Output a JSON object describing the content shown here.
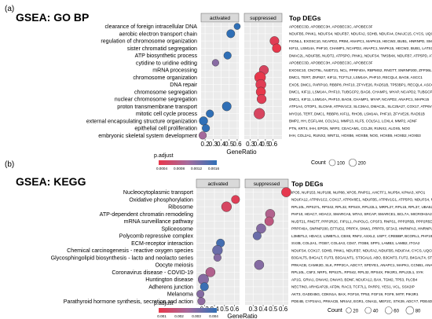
{
  "colors": {
    "low": "#e8374b",
    "mid": "#a56a9c",
    "high": "#2f6fb6",
    "panel_bg": "#ebebeb",
    "strip_bg": "#d9d9d9",
    "grid": "#ffffff",
    "dot_stroke": "#333333"
  },
  "chart_data": [
    {
      "type": "scatter",
      "panel_label": "(a)",
      "title": "GSEA: GO BP",
      "facets": [
        "activated",
        "suppressed"
      ],
      "xlabel": "GeneRatio",
      "facet_xlims": [
        [
          0.15,
          0.62
        ],
        [
          0.22,
          0.72
        ]
      ],
      "xticks": [
        0.2,
        0.3,
        0.4,
        0.5,
        0.6
      ],
      "xtick_labels": [
        "0.2",
        "0.3",
        "0.4",
        "0.5",
        "0.6"
      ],
      "terms": [
        "clearance of foreign intracellular DNA",
        "aerobic electron transport chain",
        "regulation of chromosome organization",
        "sister chromatid segregation",
        "ATP biosynthetic process",
        "cytidine to uridine editing",
        "mRNA processing",
        "chromosome organization",
        "DNA repair",
        "chromosome segregation",
        "nuclear chromosome segregation",
        "proton transmembrane transport",
        "mitotic cell cycle process",
        "external encapsulating structure organization",
        "epithelial cell proliferation",
        "embryonic skeletal system development"
      ],
      "activated": [
        {
          "term_index": 0,
          "x": 0.6,
          "count": 30,
          "padj": 0.0045
        },
        {
          "term_index": 1,
          "x": 0.52,
          "count": 80,
          "padj": 0.0055
        },
        {
          "term_index": 4,
          "x": 0.48,
          "count": 60,
          "padj": 0.0032
        },
        {
          "term_index": 5,
          "x": 0.33,
          "count": 40,
          "padj": 0.0012
        },
        {
          "term_index": 11,
          "x": 0.47,
          "count": 110,
          "padj": 0.0058
        },
        {
          "term_index": 12,
          "x": 0.26,
          "count": 60,
          "padj": 0.0022
        },
        {
          "term_index": 13,
          "x": 0.18,
          "count": 90,
          "padj": 0.0018
        },
        {
          "term_index": 14,
          "x": 0.21,
          "count": 60,
          "padj": 0.0056
        },
        {
          "term_index": 15,
          "x": 0.17,
          "count": 60,
          "padj": 0.001
        }
      ],
      "suppressed": [
        {
          "term_index": 2,
          "x": 0.62,
          "count": 110,
          "padj": 0.0003
        },
        {
          "term_index": 3,
          "x": 0.65,
          "count": 100,
          "padj": 0.0002
        },
        {
          "term_index": 6,
          "x": 0.48,
          "count": 120,
          "padj": 0.0004
        },
        {
          "term_index": 7,
          "x": 0.43,
          "count": 200,
          "padj": 0.0002
        },
        {
          "term_index": 8,
          "x": 0.44,
          "count": 160,
          "padj": 0.0003
        },
        {
          "term_index": 9,
          "x": 0.44,
          "count": 130,
          "padj": 0.0002
        },
        {
          "term_index": 10,
          "x": 0.45,
          "count": 120,
          "padj": 0.0003
        },
        {
          "term_index": 12,
          "x": 0.42,
          "count": 190,
          "padj": 0.0004
        }
      ],
      "color_legend": {
        "title": "p.adjust",
        "ticks": [
          "0.0004",
          "0.0008",
          "0.0012",
          "0.0016"
        ],
        "range": [
          0.0002,
          0.0018
        ]
      },
      "size_legend": {
        "title": "Count",
        "values": [
          100,
          200
        ],
        "labels": [
          "100",
          "200"
        ]
      },
      "degs_title": "Top DEGs",
      "degs": [
        "APOBEC3D, APOBEC3H, APOBEC3C, APOBEC3F",
        "NDUFB5, PINK1, NDUFS4, NDUFB7, NDUFA2, SDHB, NDUFA4, DNAJC15, CYCS, UQCR11",
        "FIGNL1, EXOSC10, NCAPD2, PRIM, ANAPC1, MAPK15, HECW2, BUB1, HNRNPD, SMARCA5",
        "KIF11, LSM14A, PHF10, CHAMP1, NCAPD2, ANAPC1, MAPK15, HECW2, BUB1, LATS1",
        "DMAC2L, NDUFB5, NUDT2, ATP5PO, PINK1, NDUFS4, TMSB4X, NDUFB7, ATP5PD, ATP5F1C",
        "APOBEC3D, APOBEC3H, APOBEC3C, APOBEC3F",
        "EXOSC10, CNOT6L, NUDT21, NCL, PPRF40A, RBPMS2, RNGTT, SNRNP200, ZFP36L1, EFTUD2",
        "DMC1, TERT, ZNF827, KIF11, TCF7L2, LSM14A, PHF10, RECQL4, BAG6, ASCC1",
        "EXO5, DMC1, PARPI10, RBBP8, PHF10, ZFYVE26, RAD51B, TP53BP1, RECQL4, ASCC1",
        "DMC1, KIF11, LSM14A, PHF10, TUBGCP2, BAG6, CHAMP1, MYAP, NCAPD2, TUBGCP4",
        "DMC1, KIF11, LSM14A, PHF10, BAG6, CHAMP1, MYAP, NCAPD2, ANAPC1, MAPK15",
        "ATP1A4, OTOP1, SLC9A9, ATP6V1C2, SLC36A1, DMAC2L, SLC25A27, COX17, ATP6V0E1, NDUFB5",
        "MYO16, TERT, DMC1, RBBP8, KIF11, RHOB, LSM14A, PHF10, ZFYVE26, RAD51B",
        "BMP2, HH, EGFLAM, COL3A1, MMP13, KLF5, COL5A1, LOXL4, MMP2, ADNF",
        "PTN, KRT4, IHH, EPGN, NRP2, CEACAM1, CCL28, RUNX2, ALOX5, NOG",
        "IHH, COL2A1, RUNX2, WNT11, HOXB6, HOXB8, NOG, HOXB5, HOXB2, HOXB3"
      ]
    },
    {
      "type": "scatter",
      "panel_label": "(b)",
      "title": "GSEA: KEGG",
      "facets": [
        "activated",
        "suppressed"
      ],
      "xlabel": "GeneRatio",
      "facet_xlims": [
        [
          0.22,
          0.65
        ],
        [
          0.22,
          0.65
        ]
      ],
      "xticks": [
        0.3,
        0.4,
        0.5,
        0.6
      ],
      "xtick_labels": [
        "0.3",
        "0.4",
        "0.5",
        "0.6"
      ],
      "terms": [
        "Nucleocytoplasmic transport",
        "Oxidative phosphorylation",
        "Ribosome",
        "ATP-dependent chromatin remodeling",
        "mRNA surveillance pathway",
        "Spliceosome",
        "Polycomb repressive complex",
        "ECM-receptor interaction",
        "Chemical carcinogenesis - reactive oxygen species",
        "Glycosphingolipid biosynthesis - lacto and neolacto series",
        "Oocyte meiosis",
        "Coronavirus disease - COVID-19",
        "Huntington disease",
        "Adherens junction",
        "Melanoma",
        "Parathyroid hormone synthesis, secretion and action"
      ],
      "activated": [
        {
          "term_index": 1,
          "x": 0.61,
          "count": 40,
          "padj": 0.0005
        },
        {
          "term_index": 2,
          "x": 0.52,
          "count": 70,
          "padj": 0.0008
        },
        {
          "term_index": 7,
          "x": 0.46,
          "count": 40,
          "padj": 0.0042
        },
        {
          "term_index": 8,
          "x": 0.43,
          "count": 70,
          "padj": 0.0035
        },
        {
          "term_index": 9,
          "x": 0.43,
          "count": 30,
          "padj": 0.003
        },
        {
          "term_index": 11,
          "x": 0.36,
          "count": 60,
          "padj": 0.002
        },
        {
          "term_index": 12,
          "x": 0.29,
          "count": 80,
          "padj": 0.003
        },
        {
          "term_index": 13,
          "x": 0.3,
          "count": 40,
          "padj": 0.0044
        },
        {
          "term_index": 14,
          "x": 0.26,
          "count": 30,
          "padj": 0.003
        },
        {
          "term_index": 15,
          "x": 0.27,
          "count": 30,
          "padj": 0.0028
        }
      ],
      "suppressed": [
        {
          "term_index": 0,
          "x": 0.63,
          "count": 60,
          "padj": 0.0003
        },
        {
          "term_index": 3,
          "x": 0.47,
          "count": 60,
          "padj": 0.002
        },
        {
          "term_index": 4,
          "x": 0.46,
          "count": 50,
          "padj": 0.0016
        },
        {
          "term_index": 5,
          "x": 0.38,
          "count": 60,
          "padj": 0.003
        },
        {
          "term_index": 6,
          "x": 0.34,
          "count": 40,
          "padj": 0.0035
        },
        {
          "term_index": 10,
          "x": 0.36,
          "count": 60,
          "padj": 0.003
        }
      ],
      "color_legend": {
        "title": "p.adjust",
        "ticks": [
          "0.001",
          "0.002",
          "0.003",
          "0.004"
        ],
        "range": [
          0.0002,
          0.0046
        ]
      },
      "size_legend": {
        "title": "Count",
        "values": [
          20,
          40,
          60,
          80
        ],
        "labels": [
          "20",
          "40",
          "60",
          "80"
        ]
      },
      "degs_title": "Top DEGs",
      "degs": [
        "IPO5, NUP153, NUP188, NUP88, XPO5, RNPS1, AHCTF1, NUP54, KPNA3, XPO1",
        "NDUFA12, ATP6V1C2, COX17, ATP6V0E1, NDUFB5, ATP6V1G1, ATP5PO, NDUFS4, NDUFB7",
        "RPL10L, RPS27L, RPS42, RPL32, RPS4X, RPL22L1, MRPL27, RPL15, RPL37, UBA52",
        "PHF10, HDAC7, HDAC2, SMARCA5, MTA3, SRCAP, SMARCE1, BCL7A, MICROH2A2, ARID1B",
        "NUDT21, RNGTT, PPP2R2C, FIP1L1, PAPOLG, CPSF3, RNPS1, PPP2R5B, PPP2R5D, GSPT1",
        "PRPF40A, SNRNP200, EFTUD2, PRPF4, SNW1, PRPF8, SF3A3, HNRNPA3, HNRNPU, SF3B3",
        "L3MBTL2, HDAC2, L3MBTL1, CBX8, RNF2, ASXL2, USP7, CREBBP, BCORL1, PHF19",
        "SV2B, COL2A1, ITGB7, COL4A3, CD47, ITGB8, SPP1, LAMB3, LAMB2, ITGA2",
        "NDUFS4, COX17, SDHB, PINK1, NDUFB7, NDUFA2, NDUFB5, NDUFA4, CYCS, UQCR11",
        "B3GALT5, B4GALT, FUT3, B3GALNT1, ST3GAL6, ABO, B3GNT3, FUT2, B4GALT4, ST3GAL4",
        "PRKACB, CAMK2D, SLK, PPP2CA, ADCY7, SPDYE1, ANAPC1, MAPK1, CCNB1, ANAPC4",
        "RPL10L, C5F2, NRP1, RPS27L, RPS42, RPL32, RPS4X, PIK3R1, RPL22L1, SYK",
        "AP1G, GRIA1, DNAH2, DNAH3, BDNF, NDUFA12, BAX, TGM2, TP53, PLCB4",
        "NECTIN3, ARHGAP29, AFDN, RAC3, TCF7L1, PARP2, YES1, VCL, SSX2IP",
        "AKT3, GADD45G, CDKN1A, BAX, FGF18, TP53, FGF19, FGF9, MITF, PIK3R1",
        "PDE4B, CYP24A1, PRKACB, NR4A2, EGR1, GNA11, MEF2C, STK39, ADCY7, PDE4D"
      ]
    }
  ]
}
